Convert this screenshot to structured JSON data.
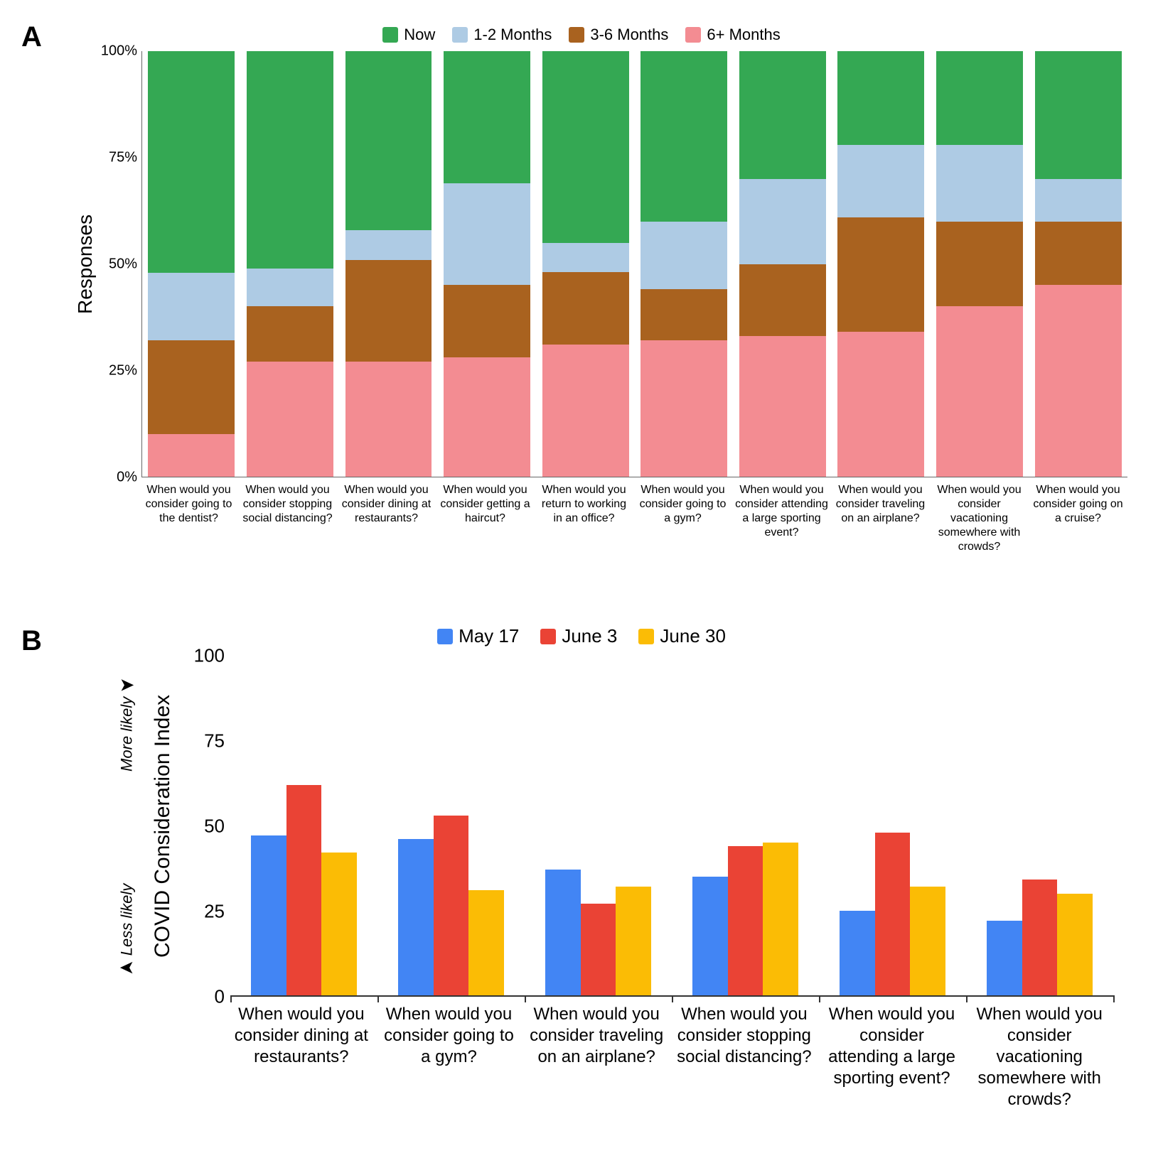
{
  "panelA": {
    "letter": "A",
    "type": "stacked-bar-100",
    "ylabel": "Responses",
    "ylim": [
      0,
      100
    ],
    "yticks": [
      0,
      25,
      50,
      75,
      100
    ],
    "ytick_labels": [
      "0%",
      "25%",
      "50%",
      "75%",
      "100%"
    ],
    "background_color": "#ffffff",
    "bar_width_pct": 88,
    "legend": [
      {
        "label": "Now",
        "color": "#34a853"
      },
      {
        "label": "1-2 Months",
        "color": "#aecbe4"
      },
      {
        "label": "3-6 Months",
        "color": "#a9621f"
      },
      {
        "label": "6+ Months",
        "color": "#f38c92"
      }
    ],
    "series_ordered_bottom_to_top": [
      "6+ Months",
      "3-6 Months",
      "1-2 Months",
      "Now"
    ],
    "categories": [
      {
        "label": "When would you consider going to the dentist?",
        "values": {
          "6+ Months": 10,
          "3-6 Months": 22,
          "1-2 Months": 16,
          "Now": 52
        }
      },
      {
        "label": "When would you consider stopping social distancing?",
        "values": {
          "6+ Months": 27,
          "3-6 Months": 13,
          "1-2 Months": 9,
          "Now": 51
        }
      },
      {
        "label": "When would you consider dining at restaurants?",
        "values": {
          "6+ Months": 27,
          "3-6 Months": 24,
          "1-2 Months": 7,
          "Now": 42
        }
      },
      {
        "label": "When would you consider getting a haircut?",
        "values": {
          "6+ Months": 28,
          "3-6 Months": 17,
          "1-2 Months": 24,
          "Now": 31
        }
      },
      {
        "label": "When would you return to working in an office?",
        "values": {
          "6+ Months": 31,
          "3-6 Months": 17,
          "1-2 Months": 7,
          "Now": 45
        }
      },
      {
        "label": "When would you consider going to a gym?",
        "values": {
          "6+ Months": 32,
          "3-6 Months": 12,
          "1-2 Months": 16,
          "Now": 40
        }
      },
      {
        "label": "When would you consider attending a large sporting event?",
        "values": {
          "6+ Months": 33,
          "3-6 Months": 17,
          "1-2 Months": 20,
          "Now": 30
        }
      },
      {
        "label": "When would you consider traveling on an airplane?",
        "values": {
          "6+ Months": 34,
          "3-6 Months": 27,
          "1-2 Months": 17,
          "Now": 22
        }
      },
      {
        "label": "When would you consider vacationing somewhere with crowds?",
        "values": {
          "6+ Months": 40,
          "3-6 Months": 20,
          "1-2 Months": 18,
          "Now": 22
        }
      },
      {
        "label": "When would you consider going on a cruise?",
        "values": {
          "6+ Months": 45,
          "3-6 Months": 15,
          "1-2 Months": 10,
          "Now": 30
        }
      }
    ]
  },
  "panelB": {
    "letter": "B",
    "type": "grouped-bar",
    "ylabel": "COVID Consideration Index",
    "ylim": [
      0,
      100
    ],
    "yticks": [
      0,
      25,
      50,
      75,
      100
    ],
    "ytick_labels": [
      "0",
      "25",
      "50",
      "75",
      "100"
    ],
    "more_likely_label": "More likely",
    "less_likely_label": "Less likely",
    "background_color": "#ffffff",
    "bar_width_pct": 24,
    "legend": [
      {
        "label": "May 17",
        "color": "#4285f4"
      },
      {
        "label": "June 3",
        "color": "#ea4335"
      },
      {
        "label": "June 30",
        "color": "#fbbc05"
      }
    ],
    "categories": [
      {
        "label": "When would you consider dining at restaurants?",
        "values": {
          "May 17": 47,
          "June 3": 62,
          "June 30": 42
        }
      },
      {
        "label": "When would you consider going to a gym?",
        "values": {
          "May 17": 46,
          "June 3": 53,
          "June 30": 31
        }
      },
      {
        "label": "When would you consider traveling on an airplane?",
        "values": {
          "May 17": 37,
          "June 3": 27,
          "June 30": 32
        }
      },
      {
        "label": "When would you consider stopping social distancing?",
        "values": {
          "May 17": 35,
          "June 3": 44,
          "June 30": 45
        }
      },
      {
        "label": "When would you consider attending a large sporting event?",
        "values": {
          "May 17": 25,
          "June 3": 48,
          "June 30": 32
        }
      },
      {
        "label": "When would you consider vacationing somewhere with crowds?",
        "values": {
          "May 17": 22,
          "June 3": 34,
          "June 30": 30
        }
      }
    ]
  }
}
